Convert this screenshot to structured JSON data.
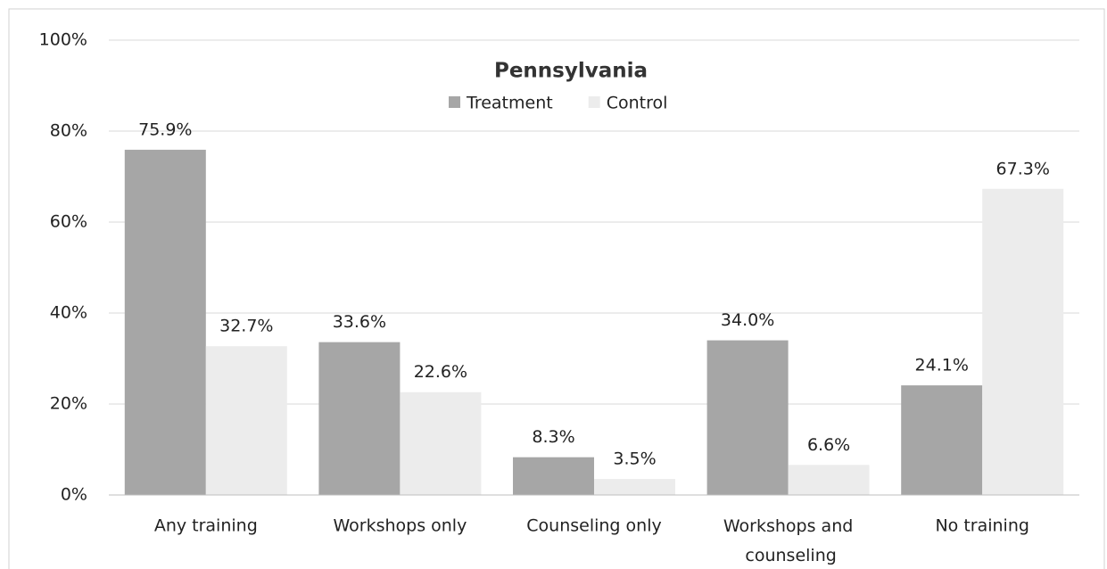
{
  "chart_data": {
    "type": "bar",
    "title": "Pennsylvania",
    "categories": [
      "Any training",
      "Workshops only",
      "Counseling only",
      "Workshops and counseling",
      "No training"
    ],
    "series": [
      {
        "name": "Treatment",
        "color": "#a6a6a6",
        "values": [
          75.9,
          33.6,
          8.3,
          34.0,
          24.1
        ],
        "value_labels": [
          "75.9%",
          "33.6%",
          "8.3%",
          "34.0%",
          "24.1%"
        ]
      },
      {
        "name": "Control",
        "color": "#ececec",
        "values": [
          32.7,
          22.6,
          3.5,
          6.6,
          67.3
        ],
        "value_labels": [
          "32.7%",
          "22.6%",
          "3.5%",
          "6.6%",
          "67.3%"
        ]
      }
    ],
    "ylim": [
      0,
      100
    ],
    "yticks": [
      {
        "value": 0,
        "label": "0%"
      },
      {
        "value": 20,
        "label": "20%"
      },
      {
        "value": 40,
        "label": "40%"
      },
      {
        "value": 60,
        "label": "60%"
      },
      {
        "value": 80,
        "label": "80%"
      },
      {
        "value": 100,
        "label": "100%"
      }
    ],
    "grid": true,
    "legend": "top"
  }
}
